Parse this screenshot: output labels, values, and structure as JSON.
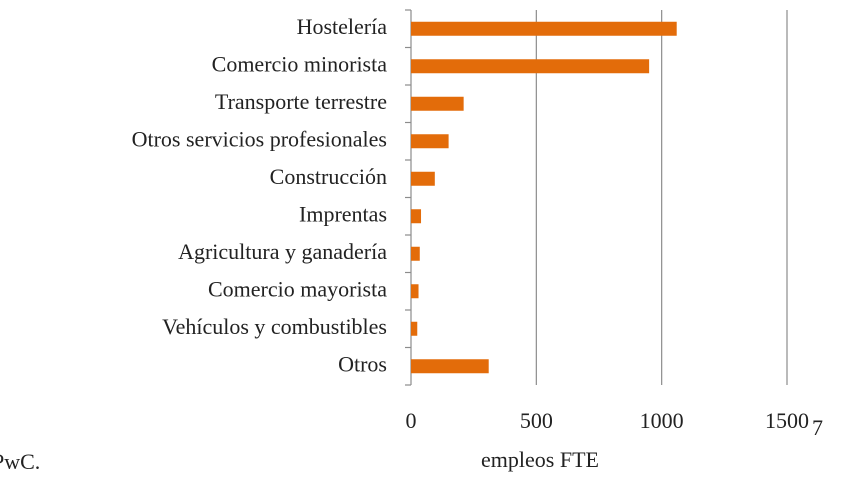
{
  "chart_data": {
    "type": "bar",
    "orientation": "horizontal",
    "categories": [
      "Hostelería",
      "Comercio minorista",
      "Transporte terrestre",
      "Otros servicios profesionales",
      "Construcción",
      "Imprentas",
      "Agricultura y ganadería",
      "Comercio mayorista",
      "Vehículos y combustibles",
      "Otros"
    ],
    "values": [
      1060,
      950,
      210,
      150,
      95,
      40,
      35,
      30,
      25,
      310
    ],
    "color": "#e36c0a",
    "xlim": [
      0,
      1500
    ],
    "xticks": [
      0,
      500,
      1000,
      1500
    ],
    "grid": true,
    "x_label": "empleos FTE",
    "source": "PwC.",
    "page_number": "7"
  }
}
